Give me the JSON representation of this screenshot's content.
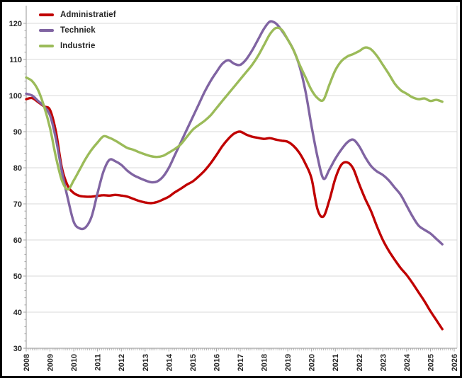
{
  "chart_data": {
    "type": "line",
    "title": "",
    "xlabel": "",
    "ylabel": "",
    "grid": "horizontal",
    "legend_position": "top-left",
    "ylim": [
      30,
      124
    ],
    "yticks": [
      30,
      40,
      50,
      60,
      70,
      80,
      90,
      100,
      110,
      120
    ],
    "xticks": [
      2008,
      2009,
      2010,
      2011,
      2012,
      2013,
      2014,
      2015,
      2016,
      2017,
      2018,
      2019,
      2020,
      2021,
      2022,
      2023,
      2024,
      2025,
      2026
    ],
    "x": [
      2008.0,
      2008.25,
      2008.5,
      2008.75,
      2009.0,
      2009.25,
      2009.5,
      2009.75,
      2010.0,
      2010.25,
      2010.5,
      2010.75,
      2011.0,
      2011.25,
      2011.5,
      2011.75,
      2012.0,
      2012.25,
      2012.5,
      2012.75,
      2013.0,
      2013.25,
      2013.5,
      2013.75,
      2014.0,
      2014.25,
      2014.5,
      2014.75,
      2015.0,
      2015.25,
      2015.5,
      2015.75,
      2016.0,
      2016.25,
      2016.5,
      2016.75,
      2017.0,
      2017.25,
      2017.5,
      2017.75,
      2018.0,
      2018.25,
      2018.5,
      2018.75,
      2019.0,
      2019.25,
      2019.5,
      2019.75,
      2020.0,
      2020.25,
      2020.5,
      2020.75,
      2021.0,
      2021.25,
      2021.5,
      2021.75,
      2022.0,
      2022.25,
      2022.5,
      2022.75,
      2023.0,
      2023.25,
      2023.5,
      2023.75,
      2024.0,
      2024.25,
      2024.5,
      2024.75,
      2025.0,
      2025.25,
      2025.5
    ],
    "series": [
      {
        "name": "Administratief",
        "color": "#C00000",
        "values": [
          99.0,
          99.3,
          98.2,
          97.0,
          96.0,
          90.0,
          80.0,
          75.0,
          73.0,
          72.2,
          72.0,
          72.0,
          72.2,
          72.4,
          72.3,
          72.5,
          72.3,
          72.0,
          71.4,
          70.8,
          70.4,
          70.2,
          70.5,
          71.2,
          72.0,
          73.2,
          74.2,
          75.3,
          76.2,
          77.6,
          79.2,
          81.2,
          83.5,
          86.0,
          88.0,
          89.5,
          90.0,
          89.2,
          88.6,
          88.3,
          88.0,
          88.2,
          87.8,
          87.5,
          87.2,
          86.0,
          84.0,
          81.0,
          77.0,
          68.5,
          66.5,
          71.0,
          77.0,
          80.8,
          81.5,
          79.8,
          75.5,
          71.5,
          68.0,
          63.8,
          60.0,
          57.0,
          54.5,
          52.2,
          50.3,
          48.0,
          45.5,
          43.0,
          40.3,
          37.8,
          35.3
        ]
      },
      {
        "name": "Techniek",
        "color": "#8064A2",
        "values": [
          100.5,
          100.0,
          98.5,
          97.0,
          94.5,
          88.0,
          79.0,
          71.5,
          65.0,
          63.2,
          63.5,
          66.5,
          73.0,
          79.0,
          82.2,
          81.8,
          80.8,
          79.2,
          78.0,
          77.2,
          76.5,
          76.0,
          76.2,
          77.5,
          80.0,
          83.5,
          87.0,
          90.5,
          94.0,
          97.5,
          101.0,
          104.0,
          106.5,
          108.8,
          109.8,
          108.8,
          108.5,
          110.0,
          112.5,
          115.5,
          118.5,
          120.5,
          120.0,
          118.0,
          115.5,
          112.5,
          108.0,
          101.0,
          91.5,
          83.0,
          77.0,
          79.5,
          82.5,
          85.0,
          87.0,
          87.8,
          86.0,
          83.0,
          80.5,
          79.0,
          78.0,
          76.5,
          74.5,
          72.5,
          69.5,
          66.5,
          64.0,
          62.8,
          61.8,
          60.3,
          58.8
        ]
      },
      {
        "name": "Industrie",
        "color": "#9BBB59",
        "values": [
          105.0,
          104.0,
          101.5,
          97.0,
          91.0,
          83.0,
          76.5,
          74.0,
          76.5,
          79.5,
          82.5,
          85.0,
          87.0,
          88.7,
          88.3,
          87.5,
          86.5,
          85.5,
          85.0,
          84.3,
          83.7,
          83.2,
          83.0,
          83.3,
          84.2,
          85.2,
          86.5,
          88.5,
          90.5,
          91.8,
          93.0,
          94.5,
          96.5,
          98.5,
          100.5,
          102.5,
          104.5,
          106.5,
          108.5,
          111.0,
          114.0,
          117.0,
          118.7,
          118.2,
          115.5,
          112.5,
          108.5,
          105.0,
          101.5,
          99.3,
          98.8,
          103.0,
          107.0,
          109.5,
          110.8,
          111.5,
          112.3,
          113.3,
          112.8,
          111.0,
          108.5,
          106.0,
          103.3,
          101.5,
          100.5,
          99.5,
          99.0,
          99.2,
          98.5,
          98.8,
          98.3
        ]
      }
    ],
    "colors": {
      "background": "#FFFFFF",
      "frame": "#000000",
      "gridline": "#D9D9D9",
      "axis": "#A6A6A6",
      "tick": "#A6A6A6",
      "label": "#262626"
    }
  }
}
